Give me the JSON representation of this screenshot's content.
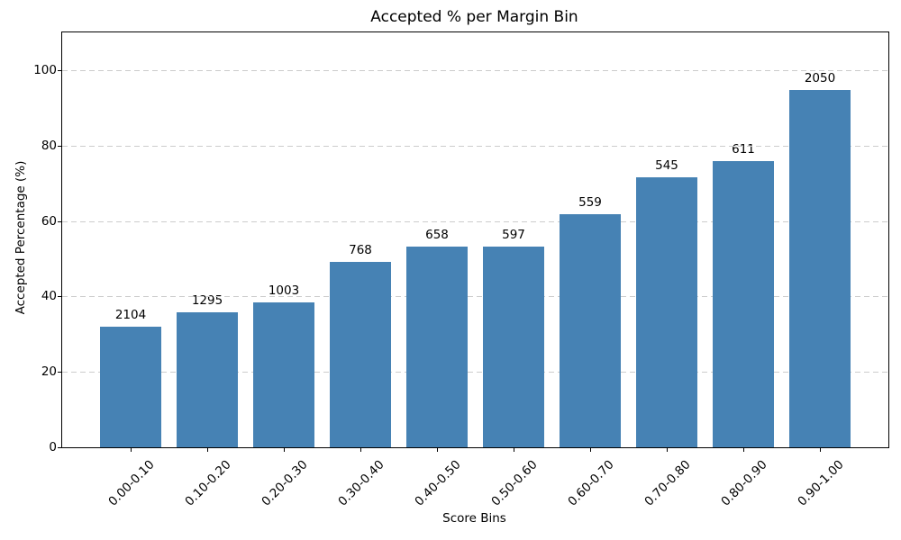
{
  "chart_data": {
    "type": "bar",
    "title": "Accepted % per Margin Bin",
    "xlabel": "Score Bins",
    "ylabel": "Accepted Percentage (%)",
    "categories": [
      "0.00-0.10",
      "0.10-0.20",
      "0.20-0.30",
      "0.30-0.40",
      "0.40-0.50",
      "0.50-0.60",
      "0.60-0.70",
      "0.70-0.80",
      "0.80-0.90",
      "0.90-1.00"
    ],
    "values": [
      32.0,
      35.7,
      38.3,
      49.2,
      53.3,
      53.1,
      61.8,
      71.6,
      75.9,
      94.8
    ],
    "bar_count_labels": [
      "2104",
      "1295",
      "1003",
      "768",
      "658",
      "597",
      "559",
      "545",
      "611",
      "2050"
    ],
    "yticks": [
      0,
      20,
      40,
      60,
      80,
      100
    ],
    "ylim": [
      0,
      110
    ],
    "x_tick_rotation": 45,
    "grid": "y-axis dashed",
    "legend": "none",
    "bar_color": "#4682b4",
    "grid_color": "#cccccc",
    "text_color": "#000000"
  }
}
